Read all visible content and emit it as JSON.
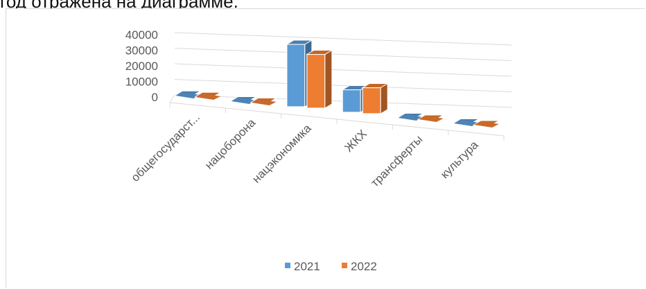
{
  "caption": "год отражена на диаграмме.",
  "colors": {
    "series_2021": "#5b9bd5",
    "series_2022": "#ed7d31",
    "grid": "#d9d9d9",
    "text": "#595959"
  },
  "chart_data": {
    "type": "bar",
    "three_d": true,
    "title": "",
    "xlabel": "",
    "ylabel": "",
    "ylim": [
      0,
      40000
    ],
    "yticks": [
      0,
      10000,
      20000,
      30000,
      40000
    ],
    "grid": true,
    "legend_position": "bottom",
    "categories": [
      "общегосударст...",
      "нацоборона",
      "нацэкономика",
      "ЖКХ",
      "трансферты",
      "культура"
    ],
    "series": [
      {
        "name": "2021",
        "values": [
          300,
          200,
          36000,
          13000,
          200,
          200
        ]
      },
      {
        "name": "2022",
        "values": [
          300,
          200,
          31000,
          15000,
          0,
          0
        ]
      }
    ]
  }
}
